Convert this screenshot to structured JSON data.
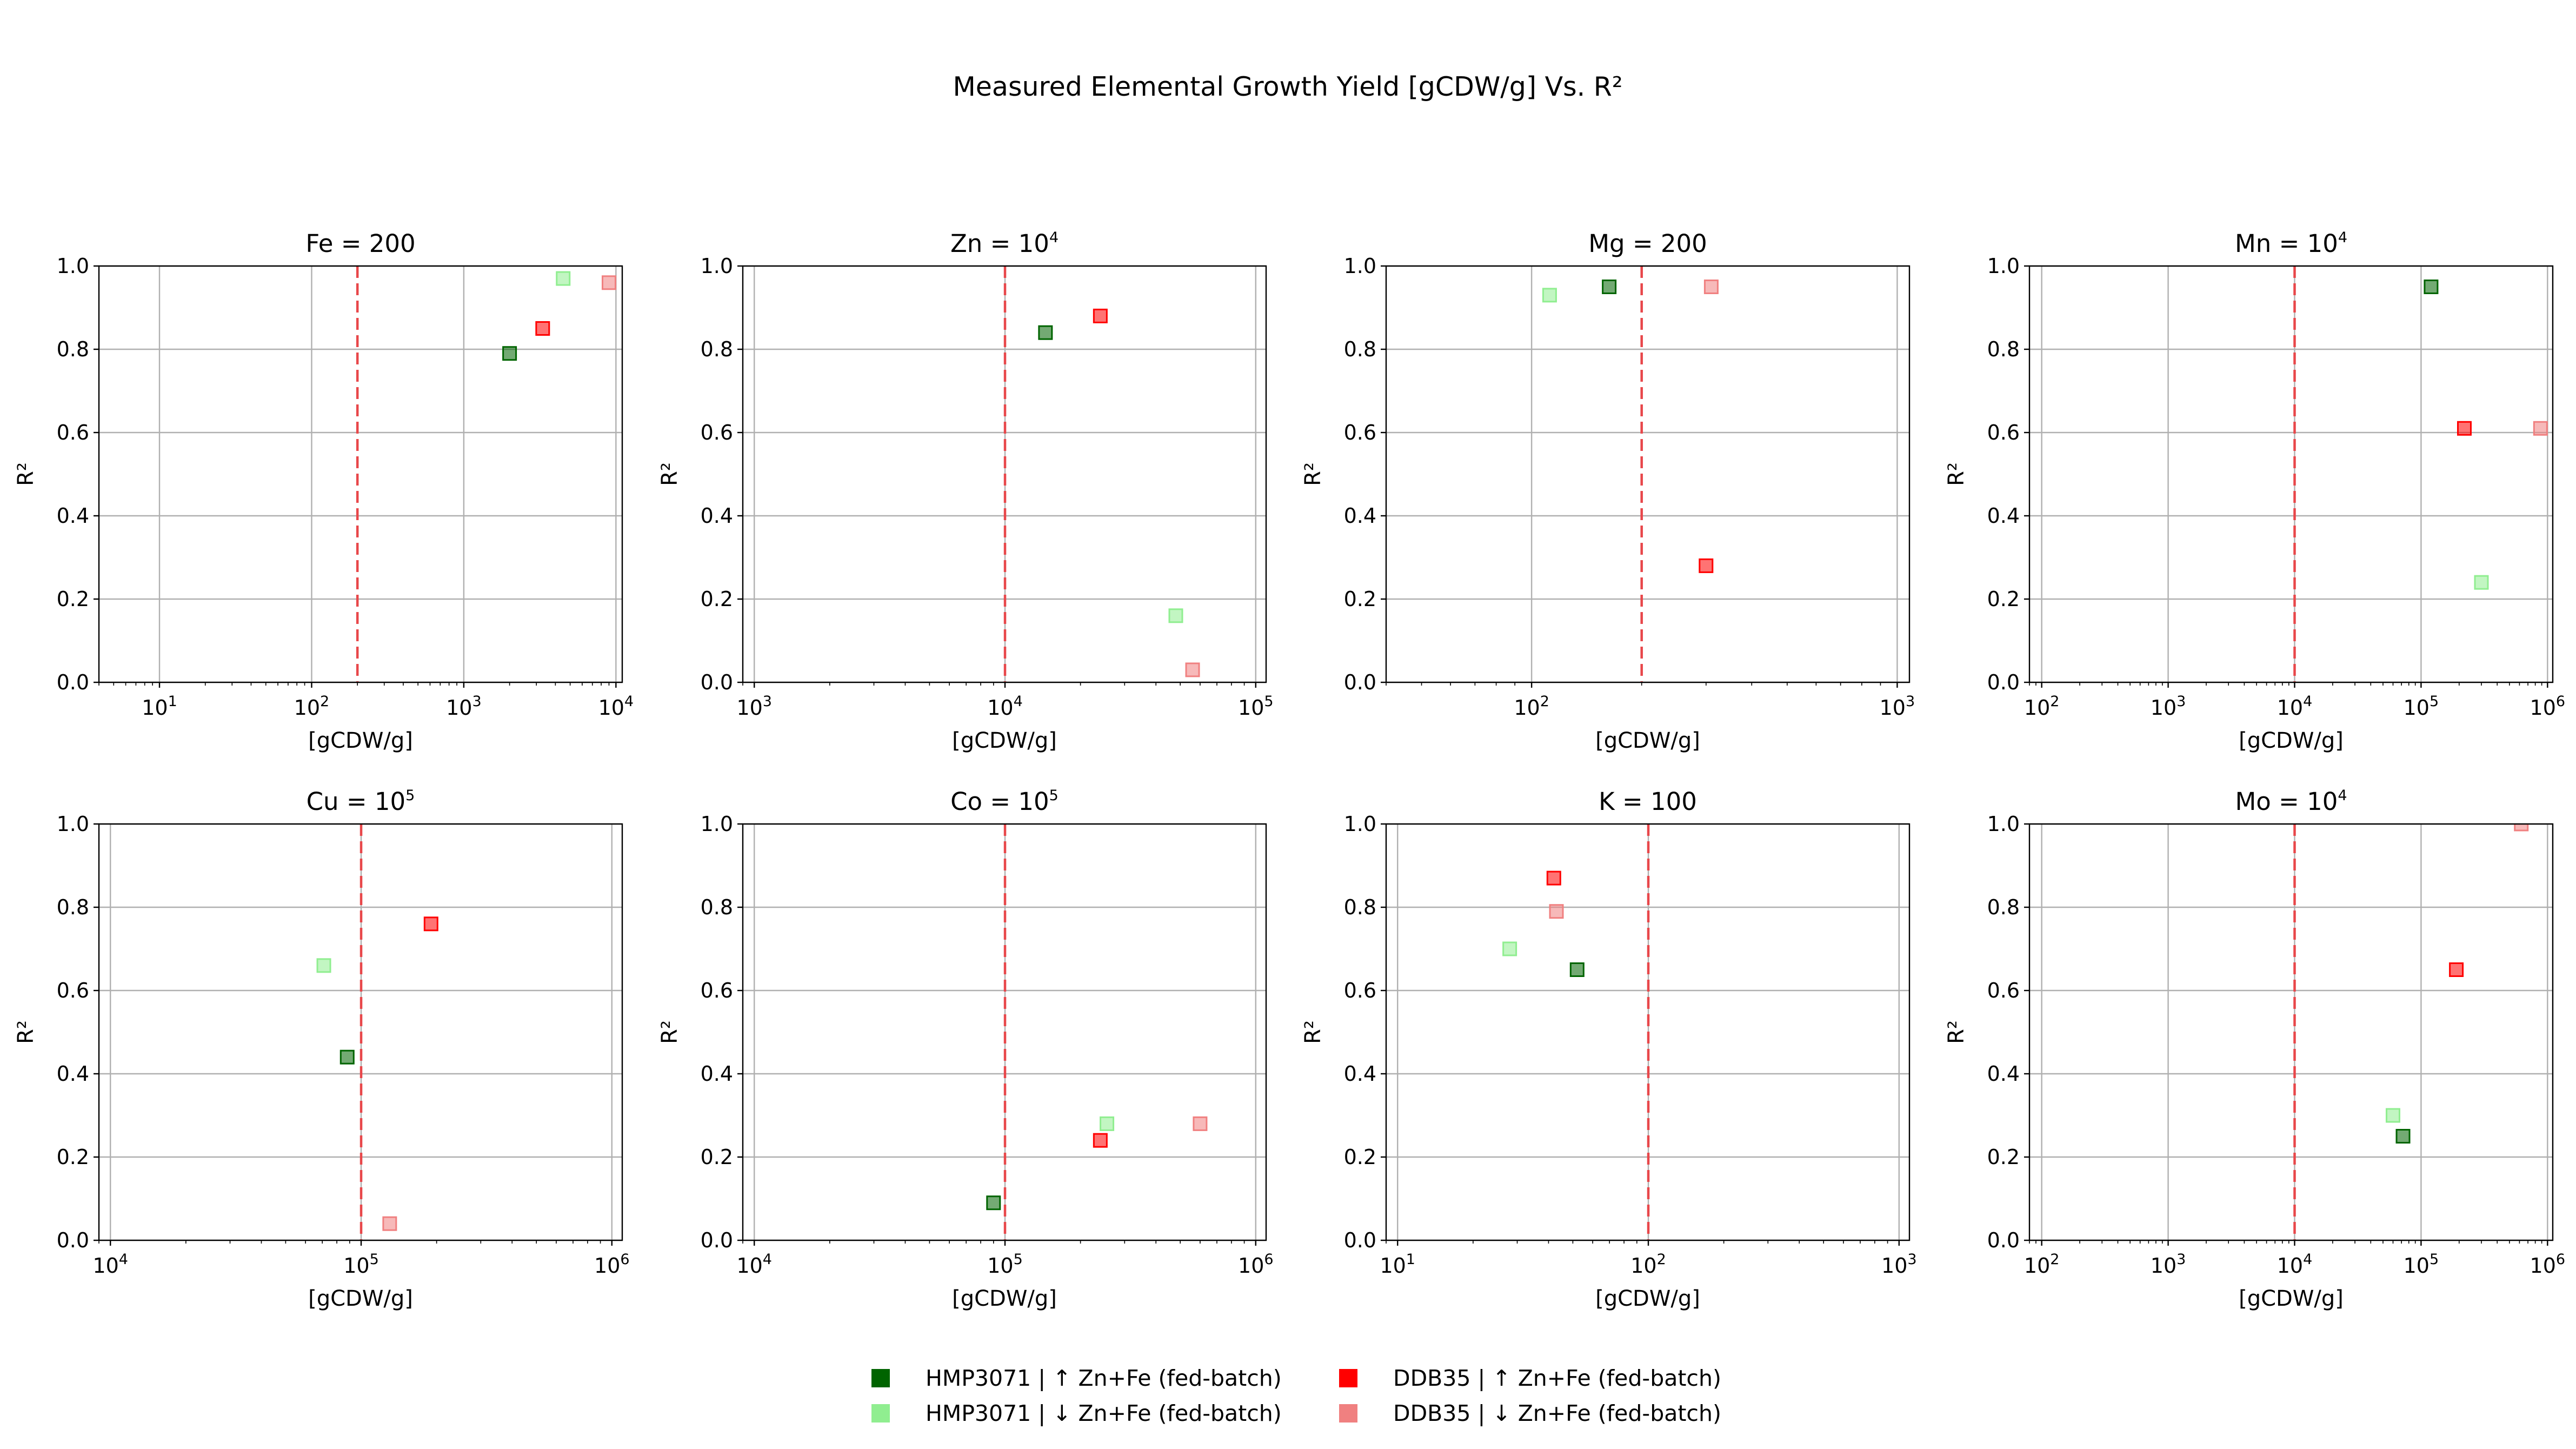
{
  "title": "Measured Elemental Growth Yield [gCDW/g] Vs. R²",
  "colors": {
    "HMP3071_up": "#006400",
    "HMP3071_down": "#90ee90",
    "DDB35_up": "#ff0000",
    "DDB35_down": "#f08080"
  },
  "legend": {
    "placement": "bottom-center",
    "entries": [
      {
        "key": "HMP3071_up",
        "label": "HMP3071 | ↑ Zn+Fe (fed-batch)"
      },
      {
        "key": "HMP3071_down",
        "label": "HMP3071 | ↓ Zn+Fe (fed-batch)"
      },
      {
        "key": "DDB35_up",
        "label": "DDB35 | ↑ Zn+Fe (fed-batch)"
      },
      {
        "key": "DDB35_down",
        "label": "DDB35 | ↓ Zn+Fe (fed-batch)"
      }
    ]
  },
  "chart_data": [
    {
      "type": "scatter",
      "title": "Fe = 200",
      "title_base": "Fe = 200",
      "title_exp": "",
      "xlabel": "[gCDW/g]",
      "ylabel": "R²",
      "xscale": "log",
      "xlim": [
        4,
        11000
      ],
      "ylim": [
        0,
        1
      ],
      "x_ticks": [
        1,
        2,
        3,
        4
      ],
      "y_ticks": [
        "0.0",
        "0.2",
        "0.4",
        "0.6",
        "0.8",
        "1.0"
      ],
      "grid": true,
      "reference_x": 200,
      "series": [
        {
          "key": "HMP3071_up",
          "x": 2000,
          "y": 0.79
        },
        {
          "key": "HMP3071_down",
          "x": 4500,
          "y": 0.97
        },
        {
          "key": "DDB35_up",
          "x": 3300,
          "y": 0.85
        },
        {
          "key": "DDB35_down",
          "x": 9000,
          "y": 0.96
        }
      ]
    },
    {
      "type": "scatter",
      "title": "Zn = 10^4",
      "title_base": "Zn = 10",
      "title_exp": "4",
      "xlabel": "[gCDW/g]",
      "ylabel": "R²",
      "xscale": "log",
      "xlim": [
        900,
        110000
      ],
      "ylim": [
        0,
        1
      ],
      "x_ticks": [
        3,
        4,
        5
      ],
      "y_ticks": [
        "0.0",
        "0.2",
        "0.4",
        "0.6",
        "0.8",
        "1.0"
      ],
      "grid": true,
      "reference_x": 10000,
      "series": [
        {
          "key": "HMP3071_up",
          "x": 14500,
          "y": 0.84
        },
        {
          "key": "HMP3071_down",
          "x": 48000,
          "y": 0.16
        },
        {
          "key": "DDB35_up",
          "x": 24000,
          "y": 0.88
        },
        {
          "key": "DDB35_down",
          "x": 56000,
          "y": 0.03
        }
      ]
    },
    {
      "type": "scatter",
      "title": "Mg = 200",
      "title_base": "Mg = 200",
      "title_exp": "",
      "xlabel": "[gCDW/g]",
      "ylabel": "R²",
      "xscale": "log",
      "xlim": [
        40,
        1080
      ],
      "ylim": [
        0,
        1
      ],
      "x_ticks": [
        2,
        3
      ],
      "y_ticks": [
        "0.0",
        "0.2",
        "0.4",
        "0.6",
        "0.8",
        "1.0"
      ],
      "grid": true,
      "reference_x": 200,
      "series": [
        {
          "key": "HMP3071_up",
          "x": 163,
          "y": 0.95
        },
        {
          "key": "HMP3071_down",
          "x": 112,
          "y": 0.93
        },
        {
          "key": "DDB35_up",
          "x": 300,
          "y": 0.28
        },
        {
          "key": "DDB35_down",
          "x": 310,
          "y": 0.95
        }
      ]
    },
    {
      "type": "scatter",
      "title": "Mn = 10^4",
      "title_base": "Mn = 10",
      "title_exp": "4",
      "xlabel": "[gCDW/g]",
      "ylabel": "R²",
      "xscale": "log",
      "xlim": [
        80,
        1100000
      ],
      "ylim": [
        0,
        1
      ],
      "x_ticks": [
        2,
        3,
        4,
        5,
        6
      ],
      "y_ticks": [
        "0.0",
        "0.2",
        "0.4",
        "0.6",
        "0.8",
        "1.0"
      ],
      "grid": true,
      "reference_x": 10000,
      "series": [
        {
          "key": "HMP3071_up",
          "x": 120000,
          "y": 0.95
        },
        {
          "key": "HMP3071_down",
          "x": 300000,
          "y": 0.24
        },
        {
          "key": "DDB35_up",
          "x": 220000,
          "y": 0.61
        },
        {
          "key": "DDB35_down",
          "x": 880000,
          "y": 0.61
        }
      ]
    },
    {
      "type": "scatter",
      "title": "Cu = 10^5",
      "title_base": "Cu = 10",
      "title_exp": "5",
      "xlabel": "[gCDW/g]",
      "ylabel": "R²",
      "xscale": "log",
      "xlim": [
        9000,
        1100000
      ],
      "ylim": [
        0,
        1
      ],
      "x_ticks": [
        4,
        5,
        6
      ],
      "y_ticks": [
        "0.0",
        "0.2",
        "0.4",
        "0.6",
        "0.8",
        "1.0"
      ],
      "grid": true,
      "reference_x": 100000,
      "series": [
        {
          "key": "HMP3071_up",
          "x": 88000,
          "y": 0.44
        },
        {
          "key": "HMP3071_down",
          "x": 71000,
          "y": 0.66
        },
        {
          "key": "DDB35_up",
          "x": 190000,
          "y": 0.76
        },
        {
          "key": "DDB35_down",
          "x": 130000,
          "y": 0.04
        }
      ]
    },
    {
      "type": "scatter",
      "title": "Co = 10^5",
      "title_base": "Co = 10",
      "title_exp": "5",
      "xlabel": "[gCDW/g]",
      "ylabel": "R²",
      "xscale": "log",
      "xlim": [
        9000,
        1100000
      ],
      "ylim": [
        0,
        1
      ],
      "x_ticks": [
        4,
        5,
        6
      ],
      "y_ticks": [
        "0.0",
        "0.2",
        "0.4",
        "0.6",
        "0.8",
        "1.0"
      ],
      "grid": true,
      "reference_x": 100000,
      "series": [
        {
          "key": "HMP3071_up",
          "x": 90000,
          "y": 0.09
        },
        {
          "key": "HMP3071_down",
          "x": 255000,
          "y": 0.28
        },
        {
          "key": "DDB35_up",
          "x": 240000,
          "y": 0.24
        },
        {
          "key": "DDB35_down",
          "x": 600000,
          "y": 0.28
        }
      ]
    },
    {
      "type": "scatter",
      "title": "K = 100",
      "title_base": "K = 100",
      "title_exp": "",
      "xlabel": "[gCDW/g]",
      "ylabel": "R²",
      "xscale": "log",
      "xlim": [
        9,
        1100
      ],
      "ylim": [
        0,
        1
      ],
      "x_ticks": [
        1,
        2,
        3
      ],
      "y_ticks": [
        "0.0",
        "0.2",
        "0.4",
        "0.6",
        "0.8",
        "1.0"
      ],
      "grid": true,
      "reference_x": 100,
      "series": [
        {
          "key": "HMP3071_up",
          "x": 52,
          "y": 0.65
        },
        {
          "key": "HMP3071_down",
          "x": 28,
          "y": 0.7
        },
        {
          "key": "DDB35_up",
          "x": 42,
          "y": 0.87
        },
        {
          "key": "DDB35_down",
          "x": 43,
          "y": 0.79
        }
      ]
    },
    {
      "type": "scatter",
      "title": "Mo = 10^4",
      "title_base": "Mo = 10",
      "title_exp": "4",
      "xlabel": "[gCDW/g]",
      "ylabel": "R²",
      "xscale": "log",
      "xlim": [
        80,
        1100000
      ],
      "ylim": [
        0,
        1
      ],
      "x_ticks": [
        2,
        3,
        4,
        5,
        6
      ],
      "y_ticks": [
        "0.0",
        "0.2",
        "0.4",
        "0.6",
        "0.8",
        "1.0"
      ],
      "grid": true,
      "reference_x": 10000,
      "series": [
        {
          "key": "HMP3071_up",
          "x": 72000,
          "y": 0.25
        },
        {
          "key": "HMP3071_down",
          "x": 60000,
          "y": 0.3
        },
        {
          "key": "DDB35_up",
          "x": 190000,
          "y": 0.65
        },
        {
          "key": "DDB35_down",
          "x": 620000,
          "y": 1.0
        }
      ]
    }
  ]
}
